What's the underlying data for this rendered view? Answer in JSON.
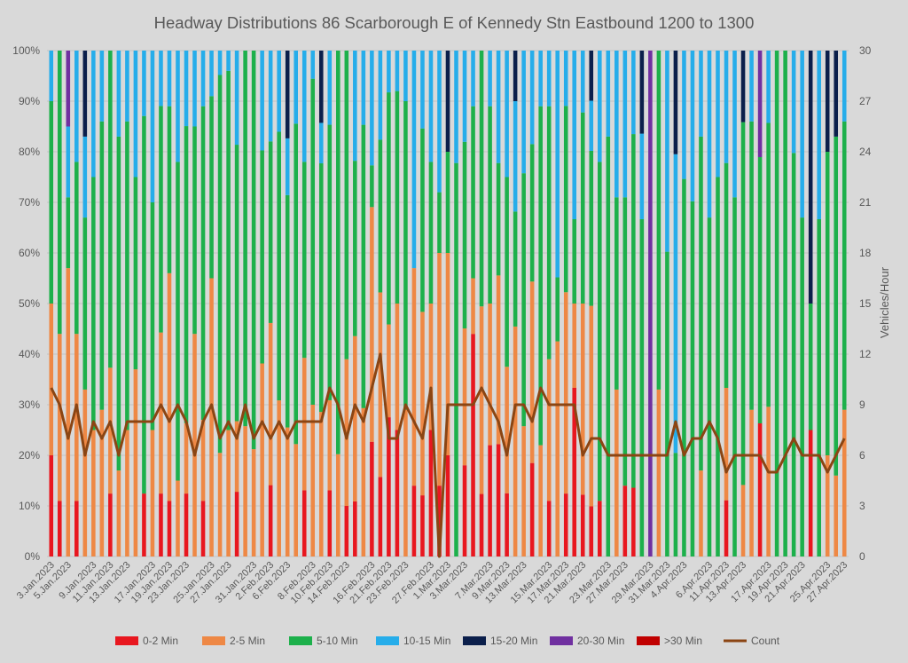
{
  "chart_data": {
    "type": "bar",
    "stacked": true,
    "normalized_percent": true,
    "title": "Headway Distributions 86 Scarborough  E of Kennedy Stn Eastbound 1200 to 1300",
    "y_axis": {
      "ticks": [
        "0%",
        "10%",
        "20%",
        "30%",
        "40%",
        "50%",
        "60%",
        "70%",
        "80%",
        "90%",
        "100%"
      ],
      "ylim": [
        0,
        100
      ]
    },
    "y2_axis": {
      "label": "Vehicles/Hour",
      "ticks": [
        "0",
        "3",
        "6",
        "9",
        "12",
        "15",
        "18",
        "21",
        "24",
        "27",
        "30"
      ],
      "ylim": [
        0,
        30
      ]
    },
    "x_tick_labels": [
      "3.Jan.2023",
      "5.Jan.2023",
      "9.Jan.2023",
      "11.Jan.2023",
      "13.Jan.2023",
      "17.Jan.2023",
      "19.Jan.2023",
      "23.Jan.2023",
      "25.Jan.2023",
      "27.Jan.2023",
      "31.Jan.2023",
      "2.Feb.2023",
      "6.Feb.2023",
      "8.Feb.2023",
      "10.Feb.2023",
      "14.Feb.2023",
      "16.Feb.2023",
      "21.Feb.2023",
      "23.Feb.2023",
      "27.Feb.2023",
      "1.Mar.2023",
      "3.Mar.2023",
      "7.Mar.2023",
      "9.Mar.2023",
      "13.Mar.2023",
      "15.Mar.2023",
      "17.Mar.2023",
      "21.Mar.2023",
      "23.Mar.2023",
      "27.Mar.2023",
      "29.Mar.2023",
      "31.Mar.2023",
      "4.Apr.2023",
      "6.Apr.2023",
      "11.Apr.2023",
      "13.Apr.2023",
      "17.Apr.2023",
      "19.Apr.2023",
      "21.Apr.2023",
      "25.Apr.2023",
      "27.Apr.2023"
    ],
    "legend": {
      "placement": "bottom"
    },
    "series": [
      {
        "name": "0-2 Min",
        "color": "#e8171f",
        "values": [
          20,
          11,
          0,
          11,
          0,
          0,
          0,
          12.5,
          0,
          0,
          0,
          12.5,
          0,
          12.5,
          11,
          0,
          12.5,
          0,
          11,
          0,
          0,
          0,
          11,
          0,
          0,
          0,
          11,
          0,
          0,
          0,
          12.5,
          0,
          0,
          12.5,
          0,
          10,
          11,
          0,
          22,
          12.5,
          30,
          25,
          0,
          14,
          11,
          25,
          14,
          20,
          0,
          22,
          44,
          11,
          22,
          20,
          11,
          0,
          0,
          17,
          0,
          11,
          0,
          12.5,
          40,
          11,
          11,
          11,
          0,
          0,
          14,
          14,
          0,
          0,
          0,
          0,
          0,
          0,
          0,
          0,
          0,
          0,
          12.5,
          0,
          0,
          0,
          25,
          0,
          0,
          0,
          0,
          0,
          20,
          0,
          0,
          0
        ]
      },
      {
        "name": "2-5 Min",
        "color": "#ee8845",
        "values": [
          30,
          33,
          57,
          33,
          33,
          25,
          29,
          25,
          17,
          25,
          37,
          0,
          25,
          32,
          45,
          15,
          14,
          44,
          16,
          55,
          17,
          25,
          12,
          17,
          14,
          29,
          25,
          25,
          25,
          20,
          25,
          27,
          25,
          17,
          18,
          29,
          33,
          22,
          45,
          29,
          20,
          25,
          29,
          43,
          33,
          25,
          46,
          40,
          0,
          33,
          11,
          33,
          28,
          30,
          22,
          50,
          17,
          33,
          22,
          28,
          37,
          40,
          20,
          34,
          44,
          0,
          0,
          33,
          0,
          0,
          0,
          0,
          33,
          0,
          0,
          0,
          0,
          17,
          0,
          0,
          25,
          0,
          14,
          29,
          0,
          29,
          0,
          0,
          0,
          0,
          0,
          0,
          20,
          16,
          29
        ]
      },
      {
        "name": "5-10 Min",
        "color": "#1db04b",
        "values": [
          40,
          56,
          14,
          34,
          34,
          50,
          57,
          63,
          66,
          61,
          38,
          75,
          45,
          45,
          33,
          63,
          59,
          41,
          62,
          36,
          62,
          71,
          47,
          49,
          52,
          32,
          28,
          43,
          45,
          57,
          37,
          58,
          43,
          52,
          71,
          61,
          35,
          42,
          8,
          24,
          50,
          42,
          61,
          0,
          33,
          28,
          12,
          20,
          77,
          45,
          34,
          45,
          39,
          20,
          33,
          25,
          33,
          25,
          67,
          50,
          11,
          37,
          20,
          34,
          34,
          67,
          83,
          38,
          57,
          72,
          67,
          0,
          67,
          50,
          17,
          50,
          66,
          66,
          67,
          75,
          50,
          71,
          71,
          57,
          50,
          55,
          80,
          83,
          67,
          67,
          20,
          40,
          60,
          67,
          57
        ]
      },
      {
        "name": "10-15 Min",
        "color": "#26adea",
        "values": [
          10,
          0,
          14,
          22,
          16,
          25,
          14,
          0,
          17,
          14,
          25,
          13,
          30,
          11,
          11,
          22,
          15,
          15,
          11,
          9,
          4,
          4,
          16,
          0,
          0,
          15,
          14,
          13,
          11,
          13,
          21,
          5,
          7,
          14,
          0,
          0,
          22,
          11,
          22,
          14,
          9,
          8,
          10,
          43,
          14,
          22,
          28,
          0,
          22,
          22,
          11,
          0,
          11,
          20,
          22,
          24,
          16,
          17,
          11,
          11,
          39,
          11,
          40,
          11,
          11,
          22,
          17,
          29,
          29,
          17,
          17,
          0,
          0,
          33,
          49,
          17,
          28,
          17,
          33,
          25,
          25,
          29,
          0,
          14,
          0,
          14,
          0,
          0,
          17,
          33,
          0,
          20,
          0,
          0,
          14
        ]
      },
      {
        "name": "15-20 Min",
        "color": "#0b1f4b",
        "values": [
          0,
          0,
          0,
          0,
          17,
          0,
          0,
          0,
          0,
          0,
          0,
          0,
          0,
          0,
          0,
          0,
          0,
          0,
          0,
          0,
          0,
          0,
          0,
          0,
          0,
          0,
          0,
          0,
          17,
          0,
          0,
          0,
          12.5,
          0,
          0,
          0,
          0,
          0,
          0,
          0,
          0,
          0,
          0,
          0,
          0,
          0,
          0,
          20,
          0,
          0,
          0,
          0,
          0,
          0,
          0,
          11,
          0,
          0,
          0,
          0,
          0,
          0,
          0,
          0,
          11,
          0,
          0,
          0,
          0,
          0,
          16.5,
          0,
          0,
          0,
          17,
          0,
          0,
          0,
          0,
          0,
          0,
          0,
          14,
          0,
          0,
          0,
          0,
          0,
          0,
          0,
          40,
          0,
          20,
          17,
          0
        ]
      },
      {
        "name": "20-30 Min",
        "color": "#7030a0",
        "values": [
          0,
          0,
          15,
          0,
          0,
          0,
          0,
          0,
          0,
          0,
          0,
          0,
          0,
          0,
          0,
          0,
          0,
          0,
          0,
          0,
          0,
          0,
          0,
          0,
          0,
          0,
          0,
          0,
          0,
          0,
          0,
          0,
          0,
          0,
          0,
          0,
          0,
          0,
          0,
          0,
          0,
          0,
          0,
          0,
          0,
          0,
          0,
          0,
          0,
          0,
          0,
          0,
          0,
          0,
          0,
          0,
          0,
          0,
          0,
          0,
          0,
          0,
          0,
          0,
          0,
          0,
          0,
          0,
          0,
          0,
          0,
          17,
          0,
          0,
          0,
          0,
          0,
          0,
          0,
          0,
          0,
          0,
          0,
          0,
          20,
          0,
          0,
          0,
          0,
          0,
          0,
          0,
          0,
          0,
          0
        ]
      },
      {
        "name": ">30 Min",
        "color": "#c00000",
        "values": [
          0,
          0,
          0,
          0,
          0,
          0,
          0,
          0,
          0,
          0,
          0,
          0,
          0,
          0,
          0,
          0,
          0,
          0,
          0,
          0,
          0,
          0,
          0,
          0,
          0,
          0,
          0,
          0,
          0,
          0,
          0,
          0,
          0,
          0,
          0,
          0,
          0,
          0,
          0,
          0,
          0,
          0,
          0,
          0,
          0,
          0,
          0,
          0,
          0,
          0,
          0,
          0,
          0,
          0,
          0,
          0,
          0,
          0,
          0,
          0,
          0,
          0,
          0,
          0,
          0,
          0,
          0,
          0,
          0,
          0,
          0,
          0,
          0,
          0,
          0,
          0,
          0,
          0,
          0,
          0,
          0,
          0,
          0,
          0,
          0,
          0,
          0,
          0,
          0,
          0,
          0,
          0,
          0,
          0,
          0
        ]
      }
    ],
    "count": {
      "name": "Count",
      "color": "#8b4513",
      "values": [
        10,
        9,
        7,
        9,
        6,
        8,
        7,
        8,
        6,
        8,
        8,
        8,
        8,
        9,
        8,
        9,
        8,
        6,
        8,
        9,
        7,
        8,
        7,
        9,
        7,
        8,
        7,
        8,
        7,
        8,
        8,
        8,
        8,
        10,
        9,
        7,
        9,
        8,
        10,
        12,
        7,
        7,
        9,
        8,
        7,
        10,
        0,
        9,
        9,
        9,
        9,
        10,
        9,
        8,
        6,
        9,
        9,
        8,
        10,
        9,
        9,
        9,
        9,
        6,
        7,
        7,
        6,
        6,
        6,
        6,
        6,
        6,
        6,
        6,
        8,
        6,
        7,
        7,
        8,
        7,
        5,
        6,
        6,
        6,
        6,
        5,
        5,
        6,
        7,
        6,
        6,
        6,
        5,
        6,
        7
      ]
    }
  }
}
